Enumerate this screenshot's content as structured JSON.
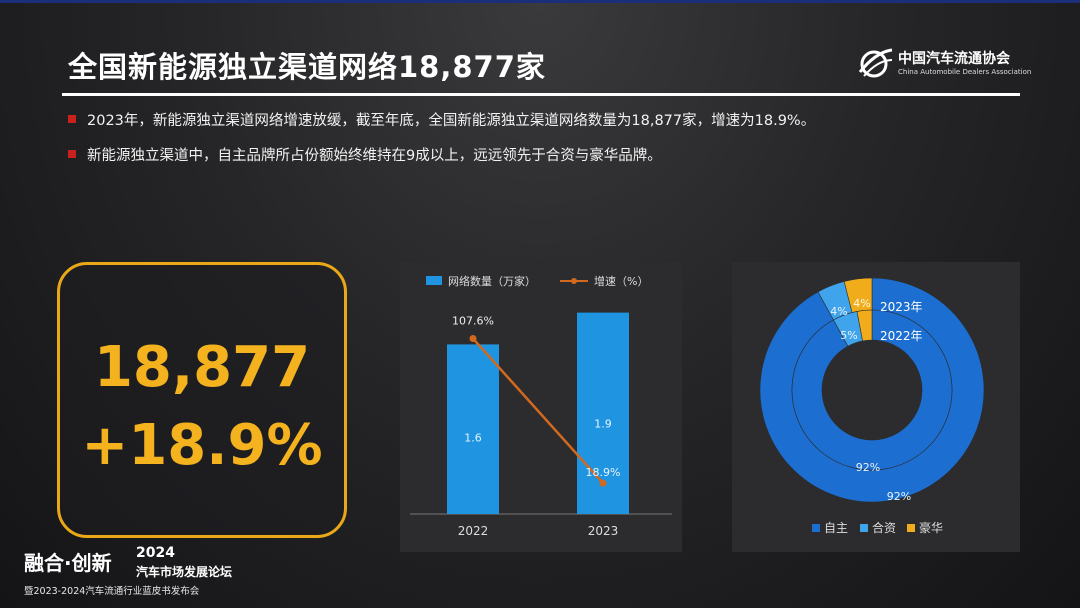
{
  "title": "全国新能源独立渠道网络18,877家",
  "logo": {
    "cn": "中国汽车流通协会",
    "en": "China Automobile Dealers Association"
  },
  "bullets": [
    "2023年，新能源独立渠道网络增速放缓，截至年底，全国新能源独立渠道网络数量为18,877家，增速为18.9%。",
    "新能源独立渠道中，自主品牌所占份额始终维持在9成以上，远远领先于合资与豪华品牌。"
  ],
  "kpi": {
    "count": "18,877",
    "growth": "+18.9%"
  },
  "colors": {
    "accent": "#f3b21e",
    "bullet": "#c8201d",
    "bar": "#1f94e0",
    "line": "#d2691e",
    "self_brand": "#1c6fd1",
    "jv": "#3fa4ec",
    "luxury": "#f0ac1a"
  },
  "chart_data": [
    {
      "type": "bar",
      "legend": [
        "网络数量（万家）",
        "增速（%）"
      ],
      "categories": [
        "2022",
        "2023"
      ],
      "series": [
        {
          "name": "网络数量（万家）",
          "kind": "bar",
          "values": [
            1.6,
            1.9
          ],
          "labels": [
            "1.6",
            "1.9"
          ]
        },
        {
          "name": "增速（%）",
          "kind": "line",
          "values": [
            107.6,
            18.9
          ],
          "labels": [
            "107.6%",
            "18.9%"
          ]
        }
      ]
    },
    {
      "type": "pie",
      "rings": [
        {
          "name": "2023年",
          "values": [
            92,
            4,
            4
          ],
          "labels": [
            "92%",
            "4%",
            "4%"
          ]
        },
        {
          "name": "2022年",
          "values": [
            92,
            5,
            3
          ],
          "labels": [
            "92%",
            "5%",
            ""
          ]
        }
      ],
      "categories": [
        "自主",
        "合资",
        "豪华"
      ],
      "legend": [
        "自主",
        "合资",
        "豪华"
      ]
    }
  ],
  "footer": {
    "brand": "融合·创新",
    "year": "2024",
    "subtitle": "汽车市场发展论坛",
    "org": "暨2023-2024汽车流通行业蓝皮书发布会"
  }
}
